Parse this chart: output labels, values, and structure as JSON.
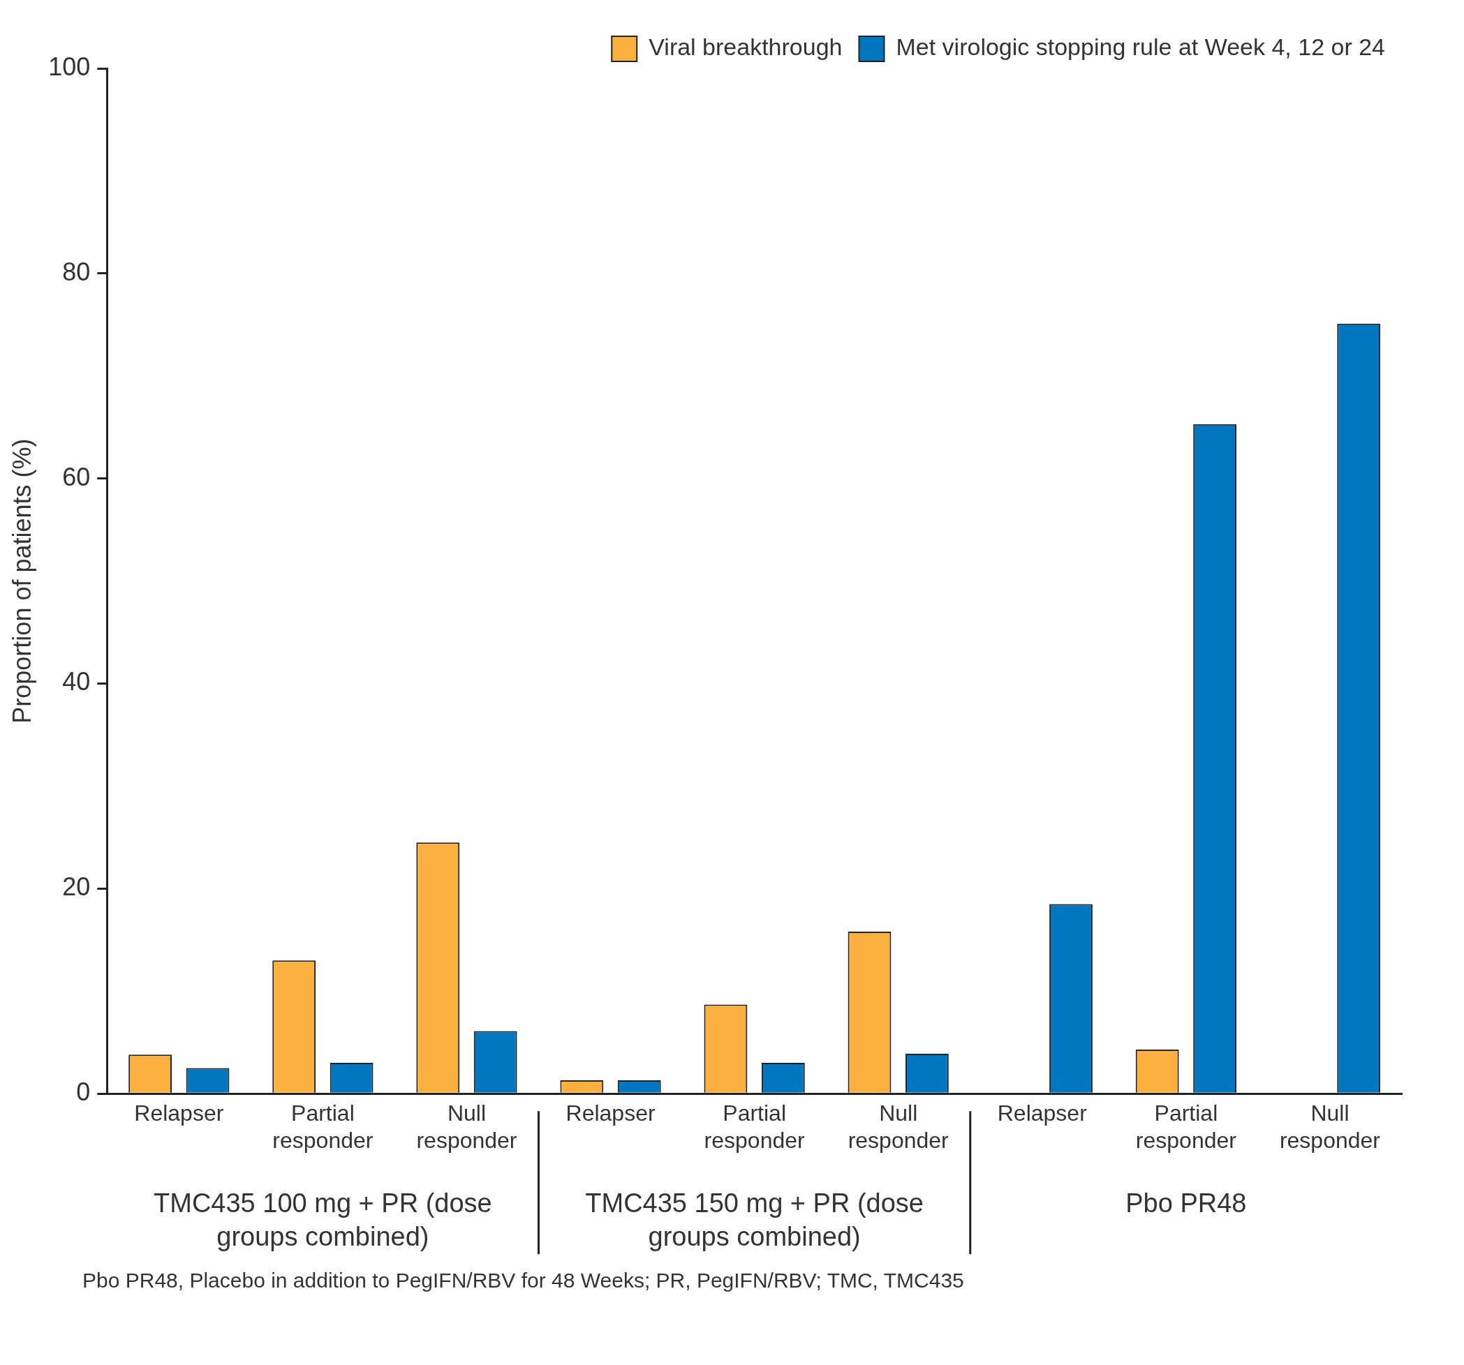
{
  "chart_data": {
    "type": "bar",
    "ylabel": "Proportion of patients (%)",
    "categories": [
      "Relapser",
      "Partial responder",
      "Null responder",
      "Relapser",
      "Partial responder",
      "Null responder",
      "Relapser",
      "Partial responder",
      "Null responder"
    ],
    "series": [
      {
        "name": "Viral breakthrough",
        "color": "#fbb040",
        "values": [
          3.8,
          13.0,
          24.5,
          1.3,
          8.7,
          15.8,
          0,
          4.3,
          0
        ]
      },
      {
        "name": "Met virologic stopping rule at Week 4, 12 or 24",
        "color": "#0077c0",
        "values": [
          2.5,
          3.0,
          6.1,
          1.3,
          3.0,
          3.9,
          18.5,
          65.3,
          75.1
        ]
      }
    ],
    "ylim": [
      0,
      100
    ],
    "yticks": [
      0,
      20,
      40,
      60,
      80,
      100
    ],
    "grid": false,
    "legend": "top right",
    "annotations": [
      "TMC435 100 mg + PR (dose groups combined)",
      "TMC435 150 mg + PR (dose groups combined)",
      "Pbo PR48",
      "Pbo PR48, Placebo in addition to PegIFN/RBV for 48 Weeks; PR, PegIFN/RBV; TMC, TMC435"
    ]
  }
}
